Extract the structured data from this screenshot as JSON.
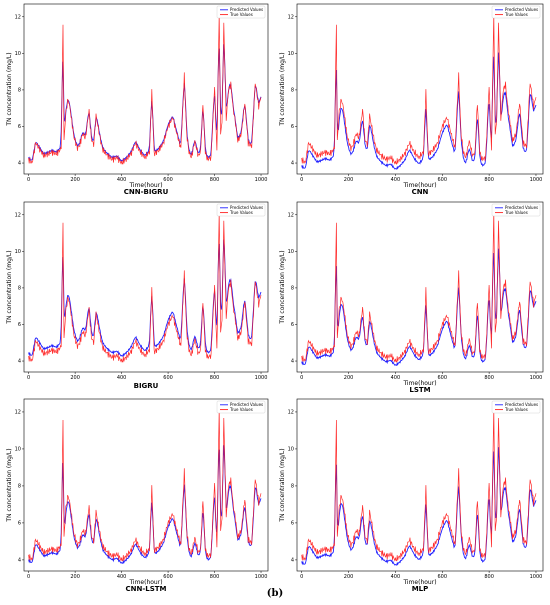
{
  "figure_label": "(b)",
  "colors": {
    "predicted": "#1f1fff",
    "true": "#ff2020"
  },
  "legend": {
    "predicted": "Predicted Values",
    "true": "True Values"
  },
  "chart_data": [
    {
      "type": "line",
      "caption": "CNN-BIGRU",
      "xlabel": "Time(hour)",
      "ylabel": "TN concentration (mg/L)",
      "xlim": [
        -20,
        1030
      ],
      "ylim": [
        3.4,
        12.7
      ],
      "xticks": [
        0,
        200,
        400,
        600,
        800,
        1000
      ],
      "yticks": [
        4,
        6,
        8,
        10,
        12
      ],
      "legend_position": "top-right",
      "grid": false,
      "prediction_bias": 0.1,
      "series": [
        {
          "name": "Predicted Values",
          "color": "#1f1fff"
        },
        {
          "name": "True Values",
          "color": "#ff2020",
          "x": [
            0,
            15,
            30,
            50,
            65,
            85,
            100,
            120,
            140,
            148,
            152,
            160,
            170,
            178,
            195,
            210,
            220,
            232,
            245,
            260,
            270,
            280,
            290,
            310,
            320,
            340,
            360,
            380,
            400,
            420,
            440,
            460,
            480,
            500,
            520,
            530,
            540,
            560,
            580,
            600,
            620,
            640,
            655,
            670,
            680,
            690,
            700,
            715,
            730,
            740,
            750,
            760,
            770,
            785,
            800,
            810,
            820,
            826,
            832,
            840,
            850,
            860,
            870,
            880,
            890,
            900,
            915,
            930,
            945,
            960,
            975,
            990,
            1000
          ],
          "y": [
            4.2,
            4.0,
            5.1,
            4.7,
            4.4,
            4.5,
            4.6,
            4.5,
            4.8,
            11.5,
            5.2,
            6.8,
            7.5,
            7.0,
            5.4,
            4.8,
            5.0,
            5.6,
            5.4,
            6.9,
            5.3,
            5.0,
            6.6,
            5.2,
            4.7,
            4.4,
            4.2,
            4.3,
            4.0,
            4.2,
            4.5,
            5.1,
            4.6,
            4.3,
            4.6,
            7.9,
            4.5,
            4.7,
            5.1,
            6.0,
            6.5,
            5.5,
            4.8,
            8.8,
            5.6,
            4.6,
            4.3,
            5.2,
            4.4,
            4.6,
            7.3,
            4.6,
            4.2,
            4.3,
            8.2,
            4.6,
            12.2,
            5.6,
            6.2,
            11.6,
            6.4,
            8.0,
            8.3,
            7.0,
            6.2,
            5.2,
            5.6,
            7.3,
            5.1,
            4.9,
            8.4,
            7.1,
            7.6
          ]
        }
      ]
    },
    {
      "type": "line",
      "caption": "CNN",
      "xlabel": "Time(hour)",
      "ylabel": "TN concentration (mg/L)",
      "xlim": [
        -20,
        1030
      ],
      "ylim": [
        3.4,
        12.7
      ],
      "xticks": [
        0,
        200,
        400,
        600,
        800,
        1000
      ],
      "yticks": [
        4,
        6,
        8,
        10,
        12
      ],
      "legend_position": "top-right",
      "grid": false,
      "prediction_bias": -0.35,
      "series": [
        {
          "name": "Predicted Values",
          "color": "#1f1fff"
        },
        {
          "name": "True Values",
          "color": "#ff2020",
          "x": [
            0,
            15,
            30,
            50,
            65,
            85,
            100,
            120,
            140,
            148,
            152,
            160,
            170,
            178,
            195,
            210,
            220,
            232,
            245,
            260,
            270,
            280,
            290,
            310,
            320,
            340,
            360,
            380,
            400,
            420,
            440,
            460,
            480,
            500,
            520,
            530,
            540,
            560,
            580,
            600,
            620,
            640,
            655,
            670,
            680,
            690,
            700,
            715,
            730,
            740,
            750,
            760,
            770,
            785,
            800,
            810,
            820,
            826,
            832,
            840,
            850,
            860,
            870,
            880,
            890,
            900,
            915,
            930,
            945,
            960,
            975,
            990,
            1000
          ],
          "y": [
            4.2,
            4.0,
            5.1,
            4.7,
            4.4,
            4.5,
            4.6,
            4.5,
            4.8,
            11.5,
            5.2,
            6.8,
            7.5,
            7.0,
            5.4,
            4.8,
            5.0,
            5.6,
            5.4,
            6.9,
            5.3,
            5.0,
            6.6,
            5.2,
            4.7,
            4.4,
            4.2,
            4.3,
            4.0,
            4.2,
            4.5,
            5.1,
            4.6,
            4.3,
            4.6,
            7.9,
            4.5,
            4.7,
            5.1,
            6.0,
            6.5,
            5.5,
            4.8,
            8.8,
            5.6,
            4.6,
            4.3,
            5.2,
            4.4,
            4.6,
            7.3,
            4.6,
            4.2,
            4.3,
            8.2,
            4.6,
            12.2,
            5.6,
            6.2,
            11.6,
            6.4,
            8.0,
            8.3,
            7.0,
            6.2,
            5.2,
            5.6,
            7.3,
            5.1,
            4.9,
            8.4,
            7.1,
            7.6
          ]
        }
      ]
    },
    {
      "type": "line",
      "caption": "BIGRU",
      "xlabel": "",
      "ylabel": "TN concentration (mg/L)",
      "xlim": [
        -20,
        1030
      ],
      "ylim": [
        3.4,
        12.7
      ],
      "xticks": [
        0,
        200,
        400,
        600,
        800,
        1000
      ],
      "yticks": [
        4,
        6,
        8,
        10,
        12
      ],
      "legend_position": "top-right",
      "grid": false,
      "prediction_bias": 0.25,
      "series": [
        {
          "name": "Predicted Values",
          "color": "#1f1fff"
        },
        {
          "name": "True Values",
          "color": "#ff2020",
          "x": [
            0,
            15,
            30,
            50,
            65,
            85,
            100,
            120,
            140,
            148,
            152,
            160,
            170,
            178,
            195,
            210,
            220,
            232,
            245,
            260,
            270,
            280,
            290,
            310,
            320,
            340,
            360,
            380,
            400,
            420,
            440,
            460,
            480,
            500,
            520,
            530,
            540,
            560,
            580,
            600,
            620,
            640,
            655,
            670,
            680,
            690,
            700,
            715,
            730,
            740,
            750,
            760,
            770,
            785,
            800,
            810,
            820,
            826,
            832,
            840,
            850,
            860,
            870,
            880,
            890,
            900,
            915,
            930,
            945,
            960,
            975,
            990,
            1000
          ],
          "y": [
            4.2,
            4.0,
            5.1,
            4.7,
            4.4,
            4.5,
            4.6,
            4.5,
            4.8,
            11.5,
            5.2,
            6.8,
            7.5,
            7.0,
            5.4,
            4.8,
            5.0,
            5.6,
            5.4,
            6.9,
            5.3,
            5.0,
            6.6,
            5.2,
            4.7,
            4.4,
            4.2,
            4.3,
            4.0,
            4.2,
            4.5,
            5.1,
            4.6,
            4.3,
            4.6,
            7.9,
            4.5,
            4.7,
            5.1,
            6.0,
            6.5,
            5.5,
            4.8,
            8.8,
            5.6,
            4.6,
            4.3,
            5.2,
            4.4,
            4.6,
            7.3,
            4.6,
            4.2,
            4.3,
            8.2,
            4.6,
            12.2,
            5.6,
            6.2,
            11.6,
            6.4,
            8.0,
            8.3,
            7.0,
            6.2,
            5.2,
            5.6,
            7.3,
            5.1,
            4.9,
            8.4,
            7.1,
            7.6
          ]
        }
      ]
    },
    {
      "type": "line",
      "caption": "LSTM",
      "xlabel": "Time(hour)",
      "ylabel": "TN concentration (mg/L)",
      "xlim": [
        -20,
        1030
      ],
      "ylim": [
        3.4,
        12.7
      ],
      "xticks": [
        0,
        200,
        400,
        600,
        800,
        1000
      ],
      "yticks": [
        4,
        6,
        8,
        10,
        12
      ],
      "legend_position": "top-right",
      "grid": false,
      "prediction_bias": -0.25,
      "series": [
        {
          "name": "Predicted Values",
          "color": "#1f1fff"
        },
        {
          "name": "True Values",
          "color": "#ff2020",
          "x": [
            0,
            15,
            30,
            50,
            65,
            85,
            100,
            120,
            140,
            148,
            152,
            160,
            170,
            178,
            195,
            210,
            220,
            232,
            245,
            260,
            270,
            280,
            290,
            310,
            320,
            340,
            360,
            380,
            400,
            420,
            440,
            460,
            480,
            500,
            520,
            530,
            540,
            560,
            580,
            600,
            620,
            640,
            655,
            670,
            680,
            690,
            700,
            715,
            730,
            740,
            750,
            760,
            770,
            785,
            800,
            810,
            820,
            826,
            832,
            840,
            850,
            860,
            870,
            880,
            890,
            900,
            915,
            930,
            945,
            960,
            975,
            990,
            1000
          ],
          "y": [
            4.2,
            4.0,
            5.1,
            4.7,
            4.4,
            4.5,
            4.6,
            4.5,
            4.8,
            11.5,
            5.2,
            6.8,
            7.5,
            7.0,
            5.4,
            4.8,
            5.0,
            5.6,
            5.4,
            6.9,
            5.3,
            5.0,
            6.6,
            5.2,
            4.7,
            4.4,
            4.2,
            4.3,
            4.0,
            4.2,
            4.5,
            5.1,
            4.6,
            4.3,
            4.6,
            7.9,
            4.5,
            4.7,
            5.1,
            6.0,
            6.5,
            5.5,
            4.8,
            8.8,
            5.6,
            4.6,
            4.3,
            5.2,
            4.4,
            4.6,
            7.3,
            4.6,
            4.2,
            4.3,
            8.2,
            4.6,
            12.2,
            5.6,
            6.2,
            11.6,
            6.4,
            8.0,
            8.3,
            7.0,
            6.2,
            5.2,
            5.6,
            7.3,
            5.1,
            4.9,
            8.4,
            7.1,
            7.6
          ]
        }
      ]
    },
    {
      "type": "line",
      "caption": "CNN-LSTM",
      "xlabel": "Time(hour)",
      "ylabel": "TN concentration (mg/L)",
      "xlim": [
        -20,
        1030
      ],
      "ylim": [
        3.4,
        12.7
      ],
      "xticks": [
        0,
        200,
        400,
        600,
        800,
        1000
      ],
      "yticks": [
        4,
        6,
        8,
        10,
        12
      ],
      "legend_position": "top-right",
      "grid": false,
      "prediction_bias": -0.2,
      "series": [
        {
          "name": "Predicted Values",
          "color": "#1f1fff"
        },
        {
          "name": "True Values",
          "color": "#ff2020",
          "x": [
            0,
            15,
            30,
            50,
            65,
            85,
            100,
            120,
            140,
            148,
            152,
            160,
            170,
            178,
            195,
            210,
            220,
            232,
            245,
            260,
            270,
            280,
            290,
            310,
            320,
            340,
            360,
            380,
            400,
            420,
            440,
            460,
            480,
            500,
            520,
            530,
            540,
            560,
            580,
            600,
            620,
            640,
            655,
            670,
            680,
            690,
            700,
            715,
            730,
            740,
            750,
            760,
            770,
            785,
            800,
            810,
            820,
            826,
            832,
            840,
            850,
            860,
            870,
            880,
            890,
            900,
            915,
            930,
            945,
            960,
            975,
            990,
            1000
          ],
          "y": [
            4.2,
            4.0,
            5.1,
            4.7,
            4.4,
            4.5,
            4.6,
            4.5,
            4.8,
            11.5,
            5.2,
            6.8,
            7.5,
            7.0,
            5.4,
            4.8,
            5.0,
            5.6,
            5.4,
            6.9,
            5.3,
            5.0,
            6.6,
            5.2,
            4.7,
            4.4,
            4.2,
            4.3,
            4.0,
            4.2,
            4.5,
            5.1,
            4.6,
            4.3,
            4.6,
            7.9,
            4.5,
            4.7,
            5.1,
            6.0,
            6.5,
            5.5,
            4.8,
            8.8,
            5.6,
            4.6,
            4.3,
            5.2,
            4.4,
            4.6,
            7.3,
            4.6,
            4.2,
            4.3,
            8.2,
            4.6,
            12.2,
            5.6,
            6.2,
            11.6,
            6.4,
            8.0,
            8.3,
            7.0,
            6.2,
            5.2,
            5.6,
            7.3,
            5.1,
            4.9,
            8.4,
            7.1,
            7.6
          ]
        }
      ]
    },
    {
      "type": "line",
      "caption": "MLP",
      "xlabel": "Time(hour)",
      "ylabel": "TN concentration (mg/L)",
      "xlim": [
        -20,
        1030
      ],
      "ylim": [
        3.4,
        12.7
      ],
      "xticks": [
        0,
        200,
        400,
        600,
        800,
        1000
      ],
      "yticks": [
        4,
        6,
        8,
        10,
        12
      ],
      "legend_position": "top-right",
      "grid": false,
      "prediction_bias": -0.3,
      "series": [
        {
          "name": "Predicted Values",
          "color": "#1f1fff"
        },
        {
          "name": "True Values",
          "color": "#ff2020",
          "x": [
            0,
            15,
            30,
            50,
            65,
            85,
            100,
            120,
            140,
            148,
            152,
            160,
            170,
            178,
            195,
            210,
            220,
            232,
            245,
            260,
            270,
            280,
            290,
            310,
            320,
            340,
            360,
            380,
            400,
            420,
            440,
            460,
            480,
            500,
            520,
            530,
            540,
            560,
            580,
            600,
            620,
            640,
            655,
            670,
            680,
            690,
            700,
            715,
            730,
            740,
            750,
            760,
            770,
            785,
            800,
            810,
            820,
            826,
            832,
            840,
            850,
            860,
            870,
            880,
            890,
            900,
            915,
            930,
            945,
            960,
            975,
            990,
            1000
          ],
          "y": [
            4.2,
            4.0,
            5.1,
            4.7,
            4.4,
            4.5,
            4.6,
            4.5,
            4.8,
            11.5,
            5.2,
            6.8,
            7.5,
            7.0,
            5.4,
            4.8,
            5.0,
            5.6,
            5.4,
            6.9,
            5.3,
            5.0,
            6.6,
            5.2,
            4.7,
            4.4,
            4.2,
            4.3,
            4.0,
            4.2,
            4.5,
            5.1,
            4.6,
            4.3,
            4.6,
            7.9,
            4.5,
            4.7,
            5.1,
            6.0,
            6.5,
            5.5,
            4.8,
            8.8,
            5.6,
            4.6,
            4.3,
            5.2,
            4.4,
            4.6,
            7.3,
            4.6,
            4.2,
            4.3,
            8.2,
            4.6,
            12.2,
            5.6,
            6.2,
            11.6,
            6.4,
            8.0,
            8.3,
            7.0,
            6.2,
            5.2,
            5.6,
            7.3,
            5.1,
            4.9,
            8.4,
            7.1,
            7.6
          ]
        }
      ]
    }
  ]
}
